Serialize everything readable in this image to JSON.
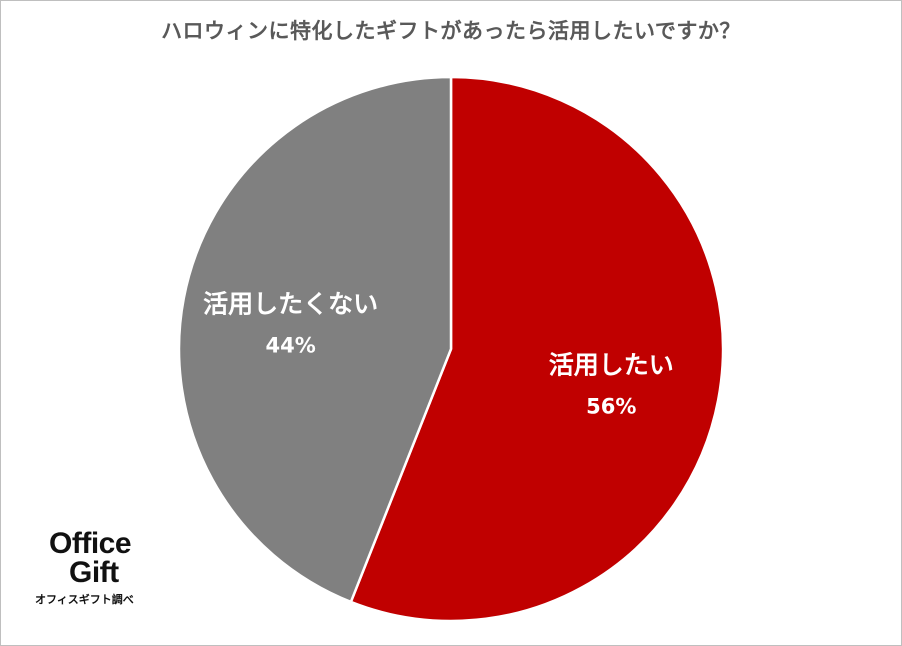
{
  "chart_data": {
    "type": "pie",
    "title": "ハロウィンに特化したギフトがあったら活用したいですか？",
    "slices": [
      {
        "label": "活用したい",
        "value": 56,
        "value_label": "56%",
        "color": "#c00000"
      },
      {
        "label": "活用したくない",
        "value": 44,
        "value_label": "44%",
        "color": "#808080"
      }
    ],
    "start": "12 o'clock",
    "direction": "clockwise",
    "legend": "none",
    "data_labels": "inside"
  },
  "brand": {
    "line1": "Office",
    "line2": "Gift",
    "credit": "オフィスギフト調べ"
  }
}
